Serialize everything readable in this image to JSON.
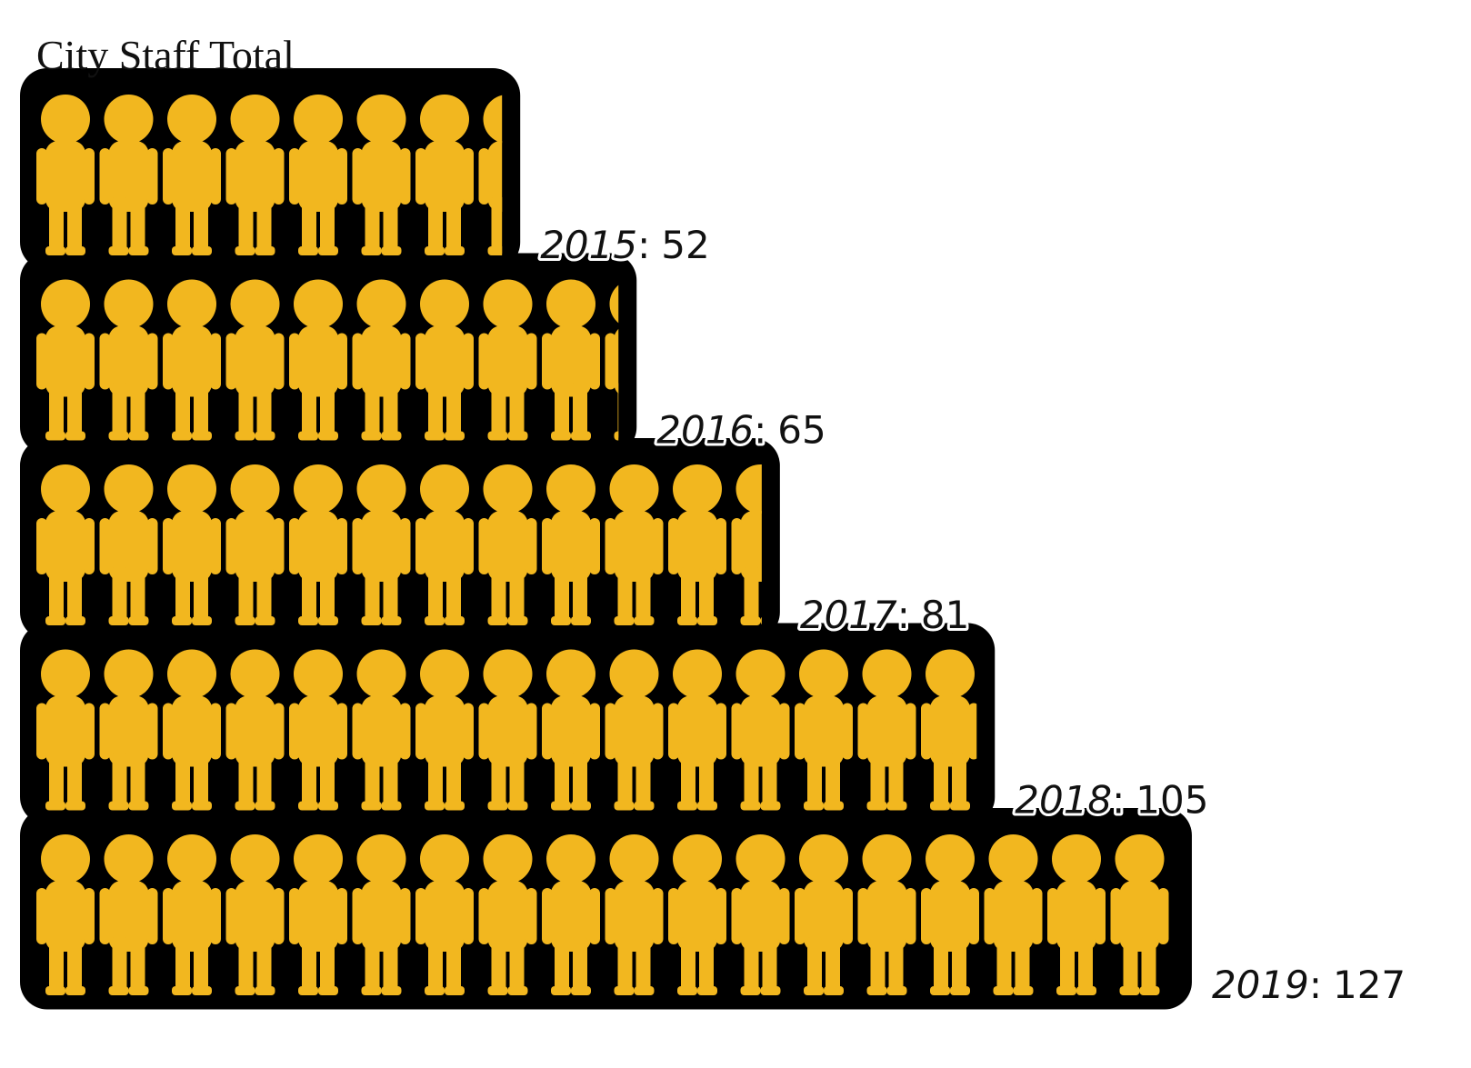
{
  "chart_data": {
    "type": "pictograph",
    "title": "City Staff Total",
    "categories": [
      "2015",
      "2016",
      "2017",
      "2018",
      "2019"
    ],
    "values": [
      52,
      65,
      81,
      105,
      127
    ],
    "label_separator": ":",
    "color": "#f2b71f"
  }
}
